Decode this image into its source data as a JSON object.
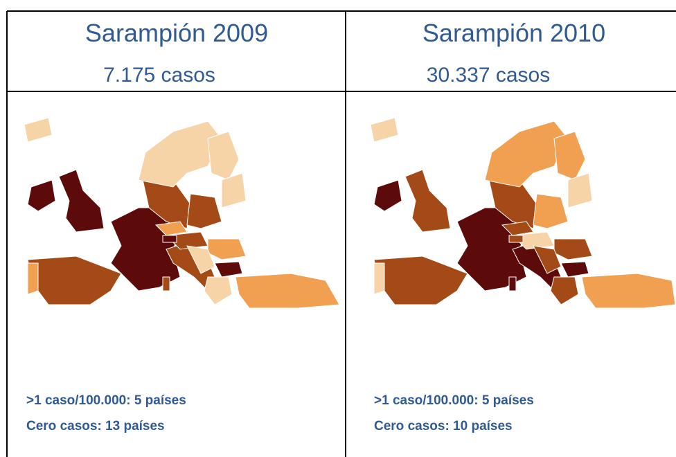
{
  "panels": [
    {
      "title": "Sarampión 2009",
      "cases": "7.175 casos",
      "stats": [
        ">1 caso/100.000: 5 países",
        "Cero casos: 13 países"
      ]
    },
    {
      "title": "Sarampión 2010",
      "cases": "30.337 casos",
      "stats": [
        ">1 caso/100.000: 5 países",
        "Cero casos: 10 países"
      ]
    }
  ]
}
